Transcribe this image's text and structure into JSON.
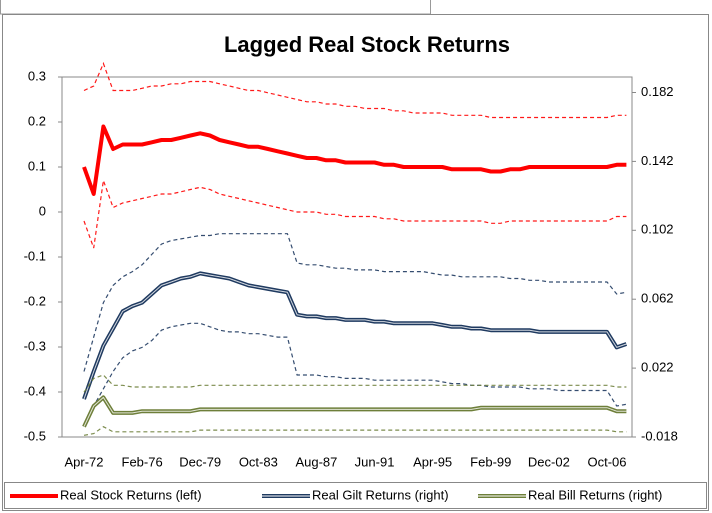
{
  "chart_data": {
    "type": "line",
    "title": "Lagged Real Stock Returns",
    "categories": [
      "Apr-72",
      null,
      null,
      null,
      null,
      null,
      "Feb-76",
      null,
      null,
      null,
      null,
      null,
      "Dec-79",
      null,
      null,
      null,
      null,
      null,
      "Oct-83",
      null,
      null,
      null,
      null,
      null,
      "Aug-87",
      null,
      null,
      null,
      null,
      null,
      "Jun-91",
      null,
      null,
      null,
      null,
      null,
      "Apr-95",
      null,
      null,
      null,
      null,
      null,
      "Feb-99",
      null,
      null,
      null,
      null,
      null,
      "Dec-02",
      null,
      null,
      null,
      null,
      null,
      "Oct-06",
      null,
      null
    ],
    "ylim": [
      -0.5,
      0.3
    ],
    "yticks": [
      0.3,
      0.2,
      0.1,
      0,
      -0.1,
      -0.2,
      -0.3,
      -0.4,
      -0.5
    ],
    "y2lim": [
      -0.018,
      0.191
    ],
    "y2ticks": [
      0.182,
      0.142,
      0.102,
      0.062,
      0.022,
      -0.018
    ],
    "legend": "bottom",
    "series": [
      {
        "name": "Real Stock Returns (left)",
        "color": "#ff0000",
        "axis": "y",
        "values": [
          0.1,
          0.04,
          0.19,
          0.14,
          0.15,
          0.15,
          0.15,
          0.155,
          0.16,
          0.16,
          0.165,
          0.17,
          0.175,
          0.17,
          0.16,
          0.155,
          0.15,
          0.145,
          0.145,
          0.14,
          0.135,
          0.13,
          0.125,
          0.12,
          0.12,
          0.115,
          0.115,
          0.11,
          0.11,
          0.11,
          0.11,
          0.105,
          0.105,
          0.1,
          0.1,
          0.1,
          0.1,
          0.1,
          0.095,
          0.095,
          0.095,
          0.095,
          0.09,
          0.09,
          0.095,
          0.095,
          0.1,
          0.1,
          0.1,
          0.1,
          0.1,
          0.1,
          0.1,
          0.1,
          0.1,
          0.105,
          0.105
        ],
        "upper": [
          0.27,
          0.28,
          0.33,
          0.27,
          0.27,
          0.27,
          0.275,
          0.28,
          0.28,
          0.285,
          0.285,
          0.29,
          0.29,
          0.29,
          0.285,
          0.28,
          0.275,
          0.27,
          0.27,
          0.265,
          0.26,
          0.255,
          0.25,
          0.245,
          0.245,
          0.24,
          0.24,
          0.235,
          0.235,
          0.23,
          0.23,
          0.23,
          0.225,
          0.225,
          0.22,
          0.22,
          0.22,
          0.22,
          0.215,
          0.215,
          0.215,
          0.215,
          0.21,
          0.21,
          0.21,
          0.21,
          0.21,
          0.21,
          0.21,
          0.21,
          0.21,
          0.21,
          0.21,
          0.21,
          0.21,
          0.215,
          0.215
        ],
        "lower": [
          -0.02,
          -0.08,
          0.07,
          0.01,
          0.02,
          0.025,
          0.03,
          0.035,
          0.04,
          0.04,
          0.045,
          0.05,
          0.055,
          0.05,
          0.04,
          0.035,
          0.03,
          0.025,
          0.02,
          0.015,
          0.01,
          0.005,
          0.0,
          0.0,
          0.0,
          -0.005,
          -0.005,
          -0.01,
          -0.01,
          -0.01,
          -0.01,
          -0.015,
          -0.015,
          -0.02,
          -0.02,
          -0.02,
          -0.02,
          -0.02,
          -0.02,
          -0.02,
          -0.02,
          -0.02,
          -0.025,
          -0.025,
          -0.02,
          -0.02,
          -0.02,
          -0.02,
          -0.02,
          -0.02,
          -0.02,
          -0.02,
          -0.02,
          -0.02,
          -0.02,
          -0.01,
          -0.01
        ]
      },
      {
        "name": "Real Gilt Returns  (right)",
        "color": "#1f3a60",
        "axis": "y2",
        "values": [
          0.004,
          0.02,
          0.035,
          0.045,
          0.055,
          0.058,
          0.06,
          0.065,
          0.07,
          0.072,
          0.074,
          0.075,
          0.077,
          0.076,
          0.075,
          0.074,
          0.072,
          0.07,
          0.069,
          0.068,
          0.067,
          0.066,
          0.053,
          0.052,
          0.052,
          0.051,
          0.051,
          0.05,
          0.05,
          0.05,
          0.049,
          0.049,
          0.048,
          0.048,
          0.048,
          0.048,
          0.048,
          0.047,
          0.046,
          0.046,
          0.045,
          0.045,
          0.044,
          0.044,
          0.044,
          0.044,
          0.044,
          0.043,
          0.043,
          0.043,
          0.043,
          0.043,
          0.043,
          0.043,
          0.043,
          0.034,
          0.036
        ],
        "upper": [
          0.02,
          0.04,
          0.06,
          0.07,
          0.075,
          0.078,
          0.082,
          0.088,
          0.094,
          0.096,
          0.097,
          0.098,
          0.099,
          0.099,
          0.1,
          0.1,
          0.1,
          0.1,
          0.1,
          0.1,
          0.1,
          0.1,
          0.083,
          0.082,
          0.082,
          0.081,
          0.08,
          0.08,
          0.079,
          0.079,
          0.079,
          0.078,
          0.078,
          0.078,
          0.078,
          0.078,
          0.077,
          0.076,
          0.076,
          0.075,
          0.075,
          0.075,
          0.075,
          0.075,
          0.074,
          0.074,
          0.073,
          0.073,
          0.072,
          0.072,
          0.072,
          0.072,
          0.072,
          0.072,
          0.072,
          0.065,
          0.066
        ],
        "lower": [
          -0.012,
          0.0,
          0.01,
          0.02,
          0.028,
          0.032,
          0.034,
          0.038,
          0.044,
          0.046,
          0.047,
          0.048,
          0.048,
          0.046,
          0.044,
          0.043,
          0.043,
          0.042,
          0.042,
          0.041,
          0.04,
          0.04,
          0.018,
          0.018,
          0.018,
          0.017,
          0.017,
          0.016,
          0.016,
          0.016,
          0.015,
          0.015,
          0.015,
          0.015,
          0.015,
          0.015,
          0.015,
          0.014,
          0.013,
          0.013,
          0.012,
          0.012,
          0.011,
          0.011,
          0.011,
          0.011,
          0.01,
          0.01,
          0.01,
          0.009,
          0.009,
          0.009,
          0.009,
          0.009,
          0.009,
          0.0,
          0.001
        ]
      },
      {
        "name": "Real Bill Returns  (right)",
        "color": "#6e7f3a",
        "axis": "y2",
        "values": [
          -0.012,
          0.0,
          0.005,
          -0.004,
          -0.004,
          -0.004,
          -0.003,
          -0.003,
          -0.003,
          -0.003,
          -0.003,
          -0.003,
          -0.002,
          -0.002,
          -0.002,
          -0.002,
          -0.002,
          -0.002,
          -0.002,
          -0.002,
          -0.002,
          -0.002,
          -0.002,
          -0.002,
          -0.002,
          -0.002,
          -0.002,
          -0.002,
          -0.002,
          -0.002,
          -0.002,
          -0.002,
          -0.002,
          -0.002,
          -0.002,
          -0.002,
          -0.002,
          -0.002,
          -0.002,
          -0.002,
          -0.002,
          -0.001,
          -0.001,
          -0.001,
          -0.001,
          -0.001,
          -0.001,
          -0.001,
          -0.001,
          -0.001,
          -0.001,
          -0.001,
          -0.001,
          -0.001,
          -0.001,
          -0.003,
          -0.003
        ],
        "upper": [
          0.008,
          0.016,
          0.018,
          0.012,
          0.012,
          0.011,
          0.011,
          0.011,
          0.011,
          0.011,
          0.011,
          0.011,
          0.012,
          0.012,
          0.012,
          0.012,
          0.012,
          0.012,
          0.012,
          0.012,
          0.012,
          0.012,
          0.012,
          0.012,
          0.012,
          0.012,
          0.012,
          0.012,
          0.012,
          0.012,
          0.012,
          0.012,
          0.012,
          0.012,
          0.012,
          0.012,
          0.012,
          0.012,
          0.012,
          0.012,
          0.012,
          0.012,
          0.012,
          0.012,
          0.012,
          0.012,
          0.012,
          0.012,
          0.012,
          0.012,
          0.012,
          0.012,
          0.012,
          0.012,
          0.012,
          0.011,
          0.011
        ],
        "lower": [
          -0.017,
          -0.016,
          -0.012,
          -0.015,
          -0.015,
          -0.015,
          -0.015,
          -0.015,
          -0.015,
          -0.015,
          -0.015,
          -0.015,
          -0.014,
          -0.014,
          -0.014,
          -0.014,
          -0.014,
          -0.014,
          -0.014,
          -0.014,
          -0.014,
          -0.014,
          -0.014,
          -0.014,
          -0.014,
          -0.014,
          -0.014,
          -0.014,
          -0.014,
          -0.014,
          -0.014,
          -0.014,
          -0.014,
          -0.014,
          -0.014,
          -0.014,
          -0.014,
          -0.014,
          -0.014,
          -0.014,
          -0.014,
          -0.014,
          -0.014,
          -0.014,
          -0.014,
          -0.014,
          -0.014,
          -0.014,
          -0.014,
          -0.014,
          -0.014,
          -0.014,
          -0.014,
          -0.014,
          -0.014,
          -0.015,
          -0.015
        ]
      }
    ]
  }
}
